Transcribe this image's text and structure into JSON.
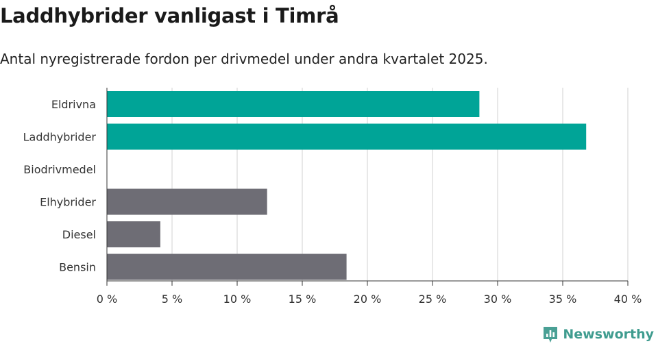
{
  "title": "Laddhybrider vanligast i Timrå",
  "subtitle": "Antal nyregistrerade fordon per drivmedel under andra kvartalet 2025.",
  "brand": "Newsworthy",
  "colors": {
    "highlight": "#00a497",
    "default": "#6e6d75",
    "grid": "#e1e1e1",
    "axis": "#333333"
  },
  "chart_data": {
    "type": "bar",
    "orientation": "horizontal",
    "categories": [
      "Eldrivna",
      "Laddhybrider",
      "Biodrivmedel",
      "Elhybrider",
      "Diesel",
      "Bensin"
    ],
    "values": [
      28.6,
      36.8,
      0,
      12.3,
      4.1,
      18.4
    ],
    "highlighted": [
      true,
      true,
      false,
      false,
      false,
      false
    ],
    "unit": "%",
    "xlim": [
      0,
      40
    ],
    "xticks": [
      0,
      5,
      10,
      15,
      20,
      25,
      30,
      35,
      40
    ],
    "xtick_labels": [
      "0 %",
      "5 %",
      "10 %",
      "15 %",
      "20 %",
      "25 %",
      "30 %",
      "35 %",
      "40 %"
    ],
    "grid": true,
    "legend": false
  }
}
